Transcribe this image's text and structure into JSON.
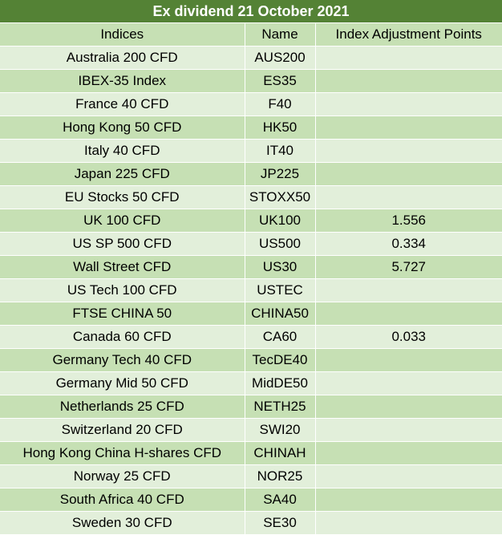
{
  "title": "Ex dividend 21 October 2021",
  "columns": [
    "Indices",
    "Name",
    "Index Adjustment Points"
  ],
  "rows": [
    {
      "index": "Australia 200 CFD",
      "name": "AUS200",
      "points": ""
    },
    {
      "index": "IBEX-35 Index",
      "name": "ES35",
      "points": ""
    },
    {
      "index": "France 40 CFD",
      "name": "F40",
      "points": ""
    },
    {
      "index": "Hong Kong 50 CFD",
      "name": "HK50",
      "points": ""
    },
    {
      "index": "Italy 40 CFD",
      "name": "IT40",
      "points": ""
    },
    {
      "index": "Japan 225 CFD",
      "name": "JP225",
      "points": ""
    },
    {
      "index": "EU Stocks 50 CFD",
      "name": "STOXX50",
      "points": ""
    },
    {
      "index": "UK 100 CFD",
      "name": "UK100",
      "points": "1.556"
    },
    {
      "index": "US SP 500 CFD",
      "name": "US500",
      "points": "0.334"
    },
    {
      "index": "Wall Street CFD",
      "name": "US30",
      "points": "5.727"
    },
    {
      "index": "US Tech 100 CFD",
      "name": "USTEC",
      "points": ""
    },
    {
      "index": "FTSE CHINA 50",
      "name": "CHINA50",
      "points": ""
    },
    {
      "index": "Canada 60 CFD",
      "name": "CA60",
      "points": "0.033"
    },
    {
      "index": "Germany Tech 40 CFD",
      "name": "TecDE40",
      "points": ""
    },
    {
      "index": "Germany Mid 50 CFD",
      "name": "MidDE50",
      "points": ""
    },
    {
      "index": "Netherlands 25 CFD",
      "name": "NETH25",
      "points": ""
    },
    {
      "index": "Switzerland 20 CFD",
      "name": "SWI20",
      "points": ""
    },
    {
      "index": "Hong Kong China H-shares CFD",
      "name": "CHINAH",
      "points": ""
    },
    {
      "index": "Norway 25 CFD",
      "name": "NOR25",
      "points": ""
    },
    {
      "index": "South Africa 40 CFD",
      "name": "SA40",
      "points": ""
    },
    {
      "index": "Sweden 30 CFD",
      "name": "SE30",
      "points": ""
    }
  ],
  "colors": {
    "title_bg": "#548235",
    "title_text": "#ffffff",
    "row_dark": "#c6e0b4",
    "row_light": "#e2efda"
  }
}
